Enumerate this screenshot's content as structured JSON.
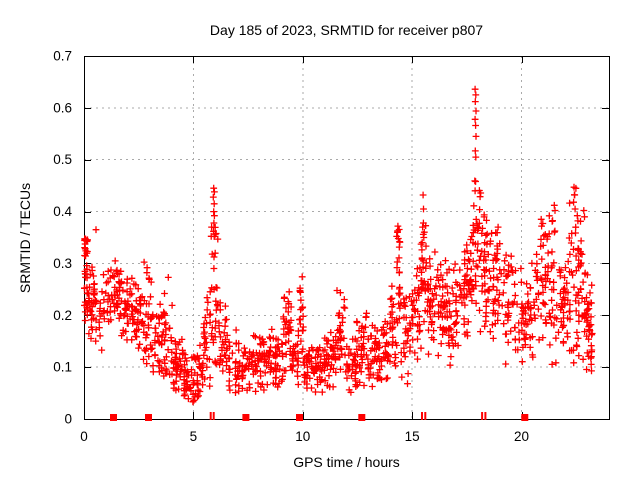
{
  "chart_data": {
    "type": "scatter",
    "title": "Day 185 of 2023, SRMTID for receiver p807",
    "xlabel": "GPS time / hours",
    "ylabel": "SRMTID / TECUs",
    "xlim": [
      0,
      24
    ],
    "ylim": [
      0,
      0.7
    ],
    "xticks": [
      0,
      5,
      10,
      15,
      20
    ],
    "xtick_labels": [
      "0",
      "5",
      "10",
      "15",
      "20"
    ],
    "yticks": [
      0,
      0.1,
      0.2,
      0.3,
      0.4,
      0.5,
      0.6,
      0.7
    ],
    "ytick_labels": [
      "0",
      "0.1",
      "0.2",
      "0.3",
      "0.4",
      "0.5",
      "0.6",
      "0.7"
    ],
    "grid": true,
    "legend": "none",
    "marker": "plus",
    "series_color": "#ff0000",
    "grid_color": "#aaaaaa",
    "axis_color": "#000000",
    "seed": 42,
    "bands": [
      [
        0.0,
        0.2,
        0.09,
        0.345,
        42,
        0.72
      ],
      [
        0.2,
        0.5,
        0.12,
        0.31,
        30,
        0.6
      ],
      [
        0.5,
        0.85,
        0.1,
        0.285,
        16,
        0.55
      ],
      [
        0.85,
        1.25,
        0.14,
        0.285,
        20,
        0.6
      ],
      [
        1.25,
        1.75,
        0.15,
        0.305,
        36,
        0.6
      ],
      [
        1.75,
        2.25,
        0.14,
        0.27,
        36,
        0.55
      ],
      [
        2.25,
        2.7,
        0.12,
        0.26,
        30,
        0.5
      ],
      [
        2.7,
        3.1,
        0.1,
        0.315,
        30,
        0.5
      ],
      [
        3.1,
        3.6,
        0.09,
        0.245,
        32,
        0.45
      ],
      [
        3.6,
        4.05,
        0.08,
        0.3,
        30,
        0.35
      ],
      [
        4.05,
        4.55,
        0.055,
        0.17,
        36,
        0.4
      ],
      [
        4.55,
        5.05,
        0.032,
        0.13,
        40,
        0.45
      ],
      [
        5.05,
        5.45,
        0.04,
        0.16,
        30,
        0.4
      ],
      [
        5.45,
        5.8,
        0.06,
        0.27,
        26,
        0.4
      ],
      [
        5.8,
        6.15,
        0.1,
        0.455,
        30,
        0.4
      ],
      [
        6.15,
        6.6,
        0.07,
        0.25,
        30,
        0.45
      ],
      [
        6.6,
        7.1,
        0.05,
        0.2,
        30,
        0.4
      ],
      [
        7.1,
        7.6,
        0.035,
        0.17,
        28,
        0.4
      ],
      [
        7.6,
        8.1,
        0.05,
        0.18,
        30,
        0.45
      ],
      [
        8.1,
        8.6,
        0.055,
        0.2,
        34,
        0.45
      ],
      [
        8.6,
        9.1,
        0.05,
        0.19,
        34,
        0.45
      ],
      [
        9.1,
        9.5,
        0.08,
        0.26,
        34,
        0.5
      ],
      [
        9.5,
        9.82,
        0.06,
        0.18,
        24,
        0.45
      ],
      [
        9.82,
        10.05,
        0.1,
        0.285,
        20,
        0.5
      ],
      [
        10.05,
        10.55,
        0.055,
        0.16,
        36,
        0.45
      ],
      [
        10.55,
        11.05,
        0.05,
        0.165,
        36,
        0.45
      ],
      [
        11.05,
        11.55,
        0.06,
        0.18,
        36,
        0.45
      ],
      [
        11.55,
        11.95,
        0.07,
        0.26,
        30,
        0.5
      ],
      [
        11.95,
        12.45,
        0.05,
        0.17,
        32,
        0.45
      ],
      [
        12.45,
        12.95,
        0.06,
        0.23,
        36,
        0.45
      ],
      [
        12.95,
        13.45,
        0.06,
        0.185,
        36,
        0.45
      ],
      [
        13.45,
        13.95,
        0.07,
        0.21,
        32,
        0.45
      ],
      [
        13.95,
        14.27,
        0.08,
        0.26,
        24,
        0.5
      ],
      [
        14.27,
        14.47,
        0.1,
        0.37,
        22,
        0.6
      ],
      [
        14.47,
        14.95,
        0.06,
        0.285,
        30,
        0.5
      ],
      [
        14.95,
        15.38,
        0.1,
        0.31,
        30,
        0.55
      ],
      [
        15.38,
        15.68,
        0.12,
        0.43,
        28,
        0.5
      ],
      [
        15.68,
        16.15,
        0.1,
        0.335,
        36,
        0.55
      ],
      [
        16.15,
        16.65,
        0.1,
        0.305,
        40,
        0.55
      ],
      [
        16.65,
        17.15,
        0.09,
        0.305,
        36,
        0.5
      ],
      [
        17.15,
        17.65,
        0.12,
        0.335,
        36,
        0.55
      ],
      [
        17.65,
        18.15,
        0.15,
        0.47,
        42,
        0.55
      ],
      [
        18.15,
        18.65,
        0.15,
        0.43,
        40,
        0.55
      ],
      [
        18.65,
        19.15,
        0.13,
        0.385,
        36,
        0.55
      ],
      [
        19.15,
        19.65,
        0.1,
        0.335,
        30,
        0.5
      ],
      [
        19.65,
        20.15,
        0.1,
        0.3,
        30,
        0.5
      ],
      [
        20.15,
        20.65,
        0.1,
        0.305,
        32,
        0.5
      ],
      [
        20.65,
        21.15,
        0.12,
        0.385,
        34,
        0.5
      ],
      [
        21.15,
        21.65,
        0.1,
        0.41,
        34,
        0.5
      ],
      [
        21.65,
        22.15,
        0.12,
        0.305,
        36,
        0.55
      ],
      [
        22.15,
        22.55,
        0.1,
        0.45,
        30,
        0.5
      ],
      [
        22.55,
        22.95,
        0.1,
        0.4,
        34,
        0.5
      ],
      [
        22.95,
        23.25,
        0.09,
        0.305,
        36,
        0.45
      ]
    ],
    "outlier_points": [
      [
        0.55,
        0.365
      ],
      [
        5.93,
        0.445
      ],
      [
        5.96,
        0.438
      ],
      [
        5.91,
        0.428
      ],
      [
        5.95,
        0.415
      ],
      [
        5.93,
        0.4
      ],
      [
        5.96,
        0.392
      ],
      [
        5.94,
        0.378
      ],
      [
        5.92,
        0.362
      ],
      [
        5.95,
        0.352
      ],
      [
        14.35,
        0.372
      ],
      [
        14.33,
        0.36
      ],
      [
        14.37,
        0.348
      ],
      [
        15.5,
        0.432
      ],
      [
        15.52,
        0.405
      ],
      [
        15.48,
        0.37
      ],
      [
        15.51,
        0.356
      ],
      [
        17.88,
        0.636
      ],
      [
        17.91,
        0.625
      ],
      [
        17.89,
        0.612
      ],
      [
        17.92,
        0.594
      ],
      [
        17.88,
        0.578
      ],
      [
        17.9,
        0.566
      ],
      [
        17.92,
        0.545
      ],
      [
        17.89,
        0.517
      ],
      [
        17.91,
        0.505
      ],
      [
        17.9,
        0.458
      ],
      [
        17.88,
        0.44
      ],
      [
        20.9,
        0.385
      ],
      [
        20.92,
        0.372
      ],
      [
        21.5,
        0.412
      ],
      [
        21.53,
        0.402
      ],
      [
        22.4,
        0.447
      ],
      [
        22.43,
        0.432
      ],
      [
        22.38,
        0.418
      ],
      [
        22.45,
        0.405
      ],
      [
        22.55,
        0.392
      ],
      [
        22.58,
        0.382
      ],
      [
        22.85,
        0.402
      ],
      [
        22.88,
        0.39
      ]
    ],
    "baseline_squares": [
      1.35,
      2.95,
      7.4,
      9.85,
      12.7,
      20.15
    ],
    "baseline_double_ticks": [
      5.79,
      5.93,
      15.45,
      15.6,
      18.2,
      18.35
    ]
  }
}
